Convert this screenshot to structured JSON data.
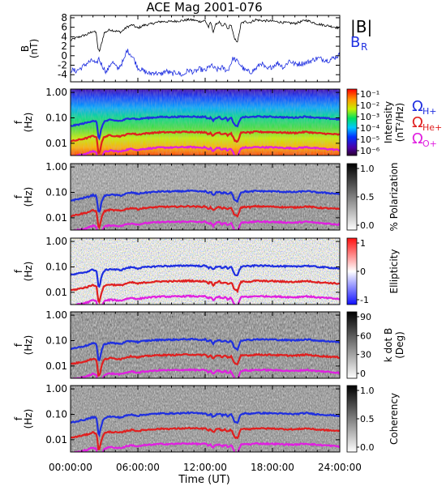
{
  "chart_data": {
    "type": "heatmap",
    "title": "ACE Mag 2001-076",
    "xlabel": "Time (UT)",
    "x_ticks": [
      "00:00:00",
      "06:00:00",
      "12:00:00",
      "18:00:00",
      "24:00:00"
    ],
    "x_range_hours": [
      0,
      24
    ],
    "panels": [
      {
        "type": "line",
        "ylabel": "B",
        "yunit": "(nT)",
        "ylim": [
          -5.5,
          8.5
        ],
        "y_ticks": [
          "8",
          "6",
          "4",
          "2",
          "0",
          "-2",
          "-4"
        ],
        "series": [
          {
            "name": "|B|",
            "color": "#000000",
            "x": [
              0,
              0.3,
              0.8,
              1.5,
              2.0,
              2.3,
              2.45,
              2.6,
              3.0,
              3.5,
              4.0,
              4.5,
              5.0,
              5.5,
              6.0,
              6.5,
              7.0,
              8.0,
              9.0,
              10.0,
              10.5,
              11.0,
              11.5,
              12.0,
              12.3,
              12.5,
              12.7,
              13.0,
              13.3,
              13.5,
              13.8,
              14.0,
              14.3,
              14.6,
              14.9,
              15.2,
              15.6,
              16.0,
              16.5,
              17.0,
              18.0,
              19.0,
              20.0,
              21.0,
              22.0,
              23.0,
              24.0
            ],
            "values": [
              3.2,
              3.6,
              4.0,
              4.5,
              5.2,
              4.8,
              1.2,
              1.0,
              4.8,
              5.5,
              5.2,
              5.0,
              6.0,
              6.5,
              5.8,
              6.4,
              6.6,
              7.2,
              7.2,
              7.4,
              7.6,
              7.5,
              7.2,
              7.4,
              6.0,
              7.1,
              5.0,
              6.8,
              7.1,
              6.0,
              6.8,
              5.5,
              6.7,
              3.5,
              3.0,
              6.8,
              7.2,
              7.0,
              7.6,
              7.4,
              7.3,
              7.0,
              6.8,
              7.5,
              6.7,
              6.3,
              5.8
            ]
          },
          {
            "name": "B",
            "subscript": "R",
            "color": "#1f2fe0",
            "x": [
              0,
              0.5,
              1.0,
              1.5,
              2.0,
              2.3,
              2.5,
              2.8,
              3.2,
              3.7,
              4.2,
              4.8,
              5.0,
              5.3,
              5.6,
              6.0,
              6.5,
              7.0,
              7.5,
              8.0,
              8.5,
              9.0,
              9.5,
              10.0,
              10.5,
              11.0,
              11.5,
              12.0,
              12.5,
              13.0,
              13.5,
              14.0,
              14.5,
              15.0,
              15.5,
              16.0,
              16.5,
              17.0,
              17.5,
              18.0,
              18.5,
              19.0,
              19.5,
              20.0,
              21.0,
              22.0,
              23.0,
              24.0
            ],
            "values": [
              -3.0,
              -3.2,
              -2.5,
              -1.5,
              -1.0,
              -2.0,
              -0.5,
              -2.0,
              -3.5,
              -1.2,
              -2.8,
              -0.8,
              1.2,
              0.5,
              -0.5,
              -2.5,
              -3.2,
              -3.8,
              -3.5,
              -4.0,
              -3.2,
              -3.8,
              -3.5,
              -4.2,
              -3.0,
              -3.5,
              -2.8,
              -3.2,
              -2.0,
              -3.0,
              -2.5,
              -3.2,
              -0.5,
              -1.5,
              -3.0,
              -3.5,
              -2.8,
              -1.5,
              -3.0,
              -2.2,
              -1.5,
              -2.5,
              -1.0,
              -1.8,
              -1.5,
              -0.5,
              -1.0,
              0.2
            ]
          }
        ]
      },
      {
        "type": "heatmap",
        "ylabel": "f",
        "yunit": "(Hz)",
        "y_ticks": [
          "1.00",
          "0.10",
          "0.01"
        ],
        "ylim_hz": [
          0.003,
          1.3
        ],
        "yscale": "log",
        "colorbar_label": "Intensity",
        "colorbar_unit": "(nT²/Hz)",
        "colorbar_ticks": [
          "10⁻¹",
          "10⁻²",
          "10⁻³",
          "10⁻⁴",
          "10⁻⁵",
          "10⁻⁶"
        ],
        "colormap": "rainbow",
        "legend": [
          {
            "label": "Ω",
            "sub": "H+",
            "color": "#1f2fe0"
          },
          {
            "label": "Ω",
            "sub": "He+",
            "color": "#e01f1f"
          },
          {
            "label": "Ω",
            "sub": "O+",
            "color": "#e01fe0"
          }
        ]
      },
      {
        "type": "heatmap",
        "ylabel": "f",
        "yunit": "(Hz)",
        "y_ticks": [
          "1.00",
          "0.10",
          "0.01"
        ],
        "colorbar_label": "% Polarization",
        "colorbar_ticks": [
          "1.0",
          "0.5",
          "0.0"
        ],
        "colormap": "gray"
      },
      {
        "type": "heatmap",
        "ylabel": "f",
        "yunit": "(Hz)",
        "y_ticks": [
          "1.00",
          "0.10",
          "0.01"
        ],
        "colorbar_label": "Ellipticity",
        "colorbar_ticks": [
          "1",
          "0",
          "-1"
        ],
        "colormap": "bwr"
      },
      {
        "type": "heatmap",
        "ylabel": "f",
        "yunit": "(Hz)",
        "y_ticks": [
          "1.00",
          "0.10",
          "0.01"
        ],
        "colorbar_label": "k dot B",
        "colorbar_unit": "(Deg)",
        "colorbar_ticks": [
          "90",
          "60",
          "30",
          "0"
        ],
        "colormap": "gray"
      },
      {
        "type": "heatmap",
        "ylabel": "f",
        "yunit": "(Hz)",
        "y_ticks": [
          "1.00",
          "0.10",
          "0.01"
        ],
        "colorbar_label": "Coherency",
        "colorbar_ticks": [
          "1.0",
          "0.5",
          "0.0"
        ],
        "colormap": "gray"
      }
    ],
    "gyrofrequency_lines": {
      "x_hours": [
        0,
        0.5,
        1.0,
        1.5,
        2.0,
        2.3,
        2.45,
        2.6,
        3.0,
        3.5,
        4.0,
        4.5,
        5.0,
        5.5,
        6.0,
        6.5,
        7.0,
        8.0,
        9.0,
        10.0,
        10.5,
        11.0,
        11.5,
        12.0,
        12.3,
        12.5,
        12.7,
        13.0,
        13.3,
        13.5,
        13.8,
        14.0,
        14.3,
        14.6,
        14.9,
        15.2,
        15.6,
        16.0,
        16.5,
        17.0,
        18.0,
        19.0,
        20.0,
        21.0,
        22.0,
        23.0,
        24.0
      ],
      "H+_hz": [
        0.048,
        0.052,
        0.058,
        0.065,
        0.078,
        0.072,
        0.018,
        0.016,
        0.072,
        0.082,
        0.078,
        0.075,
        0.09,
        0.098,
        0.087,
        0.096,
        0.1,
        0.108,
        0.108,
        0.111,
        0.114,
        0.112,
        0.108,
        0.111,
        0.09,
        0.106,
        0.075,
        0.102,
        0.106,
        0.09,
        0.102,
        0.082,
        0.1,
        0.052,
        0.045,
        0.102,
        0.108,
        0.105,
        0.114,
        0.111,
        0.11,
        0.105,
        0.102,
        0.112,
        0.1,
        0.094,
        0.087
      ],
      "He+_hz": [
        0.012,
        0.013,
        0.0145,
        0.0162,
        0.0195,
        0.018,
        0.0045,
        0.004,
        0.018,
        0.0205,
        0.0195,
        0.0188,
        0.0225,
        0.0245,
        0.0218,
        0.024,
        0.025,
        0.027,
        0.027,
        0.0278,
        0.0285,
        0.028,
        0.027,
        0.0278,
        0.0225,
        0.0265,
        0.0188,
        0.0255,
        0.0265,
        0.0225,
        0.0255,
        0.0205,
        0.025,
        0.013,
        0.0112,
        0.0255,
        0.027,
        0.0262,
        0.0285,
        0.0278,
        0.0275,
        0.0262,
        0.0255,
        0.028,
        0.025,
        0.0235,
        0.0218
      ],
      "O+_hz": [
        0.003,
        0.0032,
        0.0036,
        0.004,
        0.0049,
        0.0045,
        0.0011,
        0.001,
        0.0045,
        0.0051,
        0.0049,
        0.0047,
        0.0056,
        0.0061,
        0.0054,
        0.006,
        0.0063,
        0.0068,
        0.0068,
        0.007,
        0.0071,
        0.007,
        0.0068,
        0.007,
        0.0056,
        0.0066,
        0.0047,
        0.0064,
        0.0066,
        0.0056,
        0.0064,
        0.0051,
        0.0063,
        0.0032,
        0.0028,
        0.0064,
        0.0068,
        0.0066,
        0.0071,
        0.007,
        0.0069,
        0.0066,
        0.0064,
        0.007,
        0.0063,
        0.0059,
        0.0054
      ]
    }
  }
}
